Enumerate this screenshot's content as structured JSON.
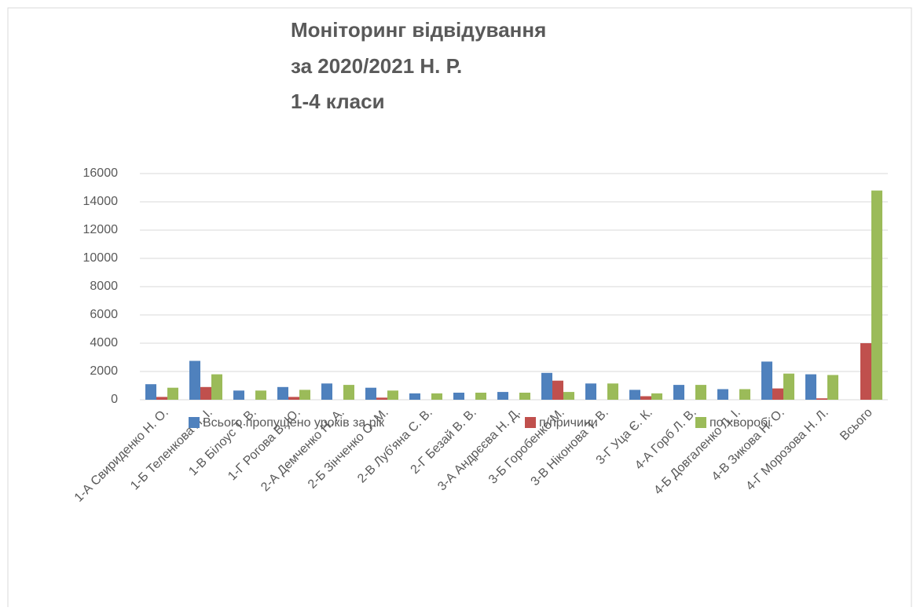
{
  "chart_data": {
    "type": "bar",
    "title": [
      "Моніторинг відвідування",
      "за  2020/2021 Н. Р.",
      "1-4 класи"
    ],
    "categories": [
      "1-А Свириденко Н. О.",
      "1-Б Теленкова Л. І.",
      "1-В Білоус Т. В.",
      "1-Г Рогова В. Ю.",
      "2-А Демченко Н. А.",
      "2-Б Зінченко О. М.",
      "2-В Луб'яна С. В.",
      "2-Г Безай В. В.",
      "3-А Андрєєва Н. Д.",
      "3-Б Горобенко М.",
      "3-В Ніконова Т. В.",
      "3-Г Уца Є. К.",
      "4-А Горб Л. В.",
      "4-Б Довгаленко Л. І.",
      "4-В Зикова Н. О.",
      "4-Г Морозова Н. Л.",
      "Всього"
    ],
    "series": [
      {
        "name": "Всього пропущено уроків за рік",
        "color": "#4f81bd",
        "values": [
          1100,
          2750,
          650,
          900,
          1150,
          850,
          450,
          500,
          550,
          1900,
          1150,
          700,
          1050,
          750,
          2700,
          1800,
          null
        ]
      },
      {
        "name": "п/причини",
        "color": "#c0504d",
        "values": [
          200,
          900,
          0,
          200,
          0,
          150,
          0,
          0,
          0,
          1350,
          0,
          250,
          0,
          0,
          800,
          100,
          4000
        ]
      },
      {
        "name": "по хворобі",
        "color": "#9bbb59",
        "values": [
          850,
          1800,
          650,
          700,
          1050,
          650,
          450,
          500,
          500,
          550,
          1150,
          450,
          1050,
          750,
          1850,
          1750,
          14800
        ]
      }
    ],
    "ylim": [
      0,
      16000
    ],
    "yticks": [
      0,
      2000,
      4000,
      6000,
      8000,
      10000,
      12000,
      14000,
      16000
    ],
    "grid": true
  }
}
